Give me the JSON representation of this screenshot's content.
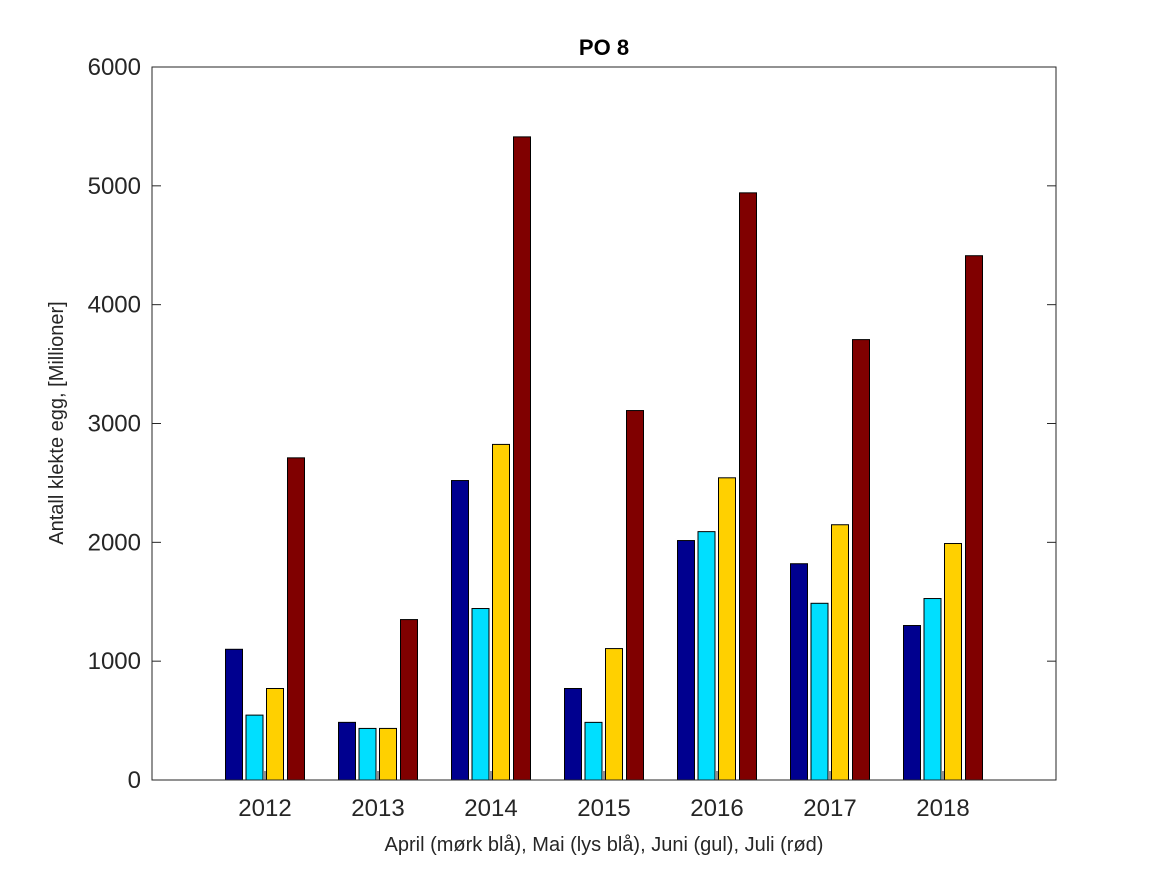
{
  "chart_data": {
    "type": "bar",
    "title": "PO 8",
    "xlabel": "April (mørk blå), Mai (lys blå), Juni (gul), Juli (rød)",
    "ylabel": "Antall klekte egg, [Millioner]",
    "categories": [
      "2012",
      "2013",
      "2014",
      "2015",
      "2016",
      "2017",
      "2018"
    ],
    "xlim": [
      2011,
      2019
    ],
    "ylim": [
      0,
      6000
    ],
    "yticks": [
      0,
      1000,
      2000,
      3000,
      4000,
      5000,
      6000
    ],
    "grid": false,
    "series": [
      {
        "name": "April",
        "color": "#00008f",
        "values": [
          1100,
          485,
          2520,
          770,
          2015,
          1820,
          1300
        ]
      },
      {
        "name": "Mai",
        "color": "#00dfff",
        "values": [
          546,
          434,
          1443,
          485,
          2090,
          1487,
          1527
        ]
      },
      {
        "name": "Juni",
        "color": "#ffd000",
        "values": [
          770,
          434,
          2824,
          1106,
          2543,
          2148,
          1990
        ]
      },
      {
        "name": "Juli",
        "color": "#800000",
        "values": [
          2711,
          1350,
          5412,
          3109,
          4941,
          3706,
          4412
        ]
      }
    ]
  }
}
